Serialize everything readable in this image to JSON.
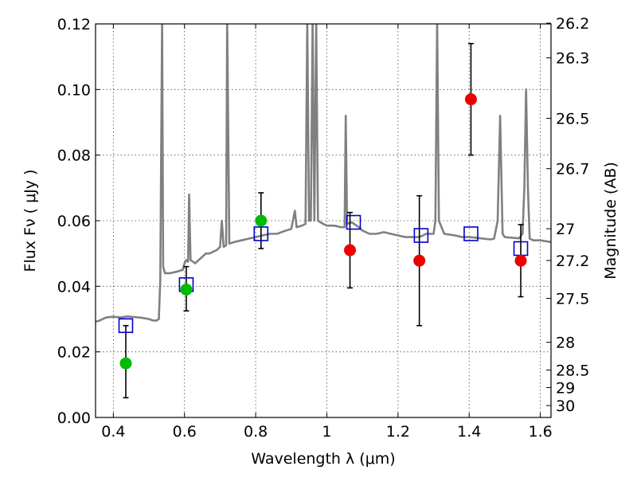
{
  "chart_data": {
    "type": "scatter",
    "xlabel": "Wavelength  λ (μm)",
    "ylabel": "Flux  Fν  ( μJy )",
    "y2label": "Magnitude (AB)",
    "xlim": [
      0.35,
      1.63
    ],
    "ylim": [
      0.0,
      0.12
    ],
    "grid": true,
    "x_ticks": [
      0.4,
      0.6,
      0.8,
      1.0,
      1.2,
      1.4,
      1.6
    ],
    "x_tick_labels": [
      "0.4",
      "0.6",
      "0.8",
      "1",
      "1.2",
      "1.4",
      "1.6"
    ],
    "y_ticks": [
      0.0,
      0.02,
      0.04,
      0.06,
      0.08,
      0.1,
      0.12
    ],
    "y_tick_labels": [
      "0.00",
      "0.02",
      "0.04",
      "0.06",
      "0.08",
      "0.10",
      "0.12"
    ],
    "mag_ticks": [
      26.2,
      26.3,
      26.5,
      26.7,
      27,
      27.2,
      27.5,
      28,
      28.5,
      29,
      30
    ],
    "mag_tick_labels": [
      "26.2",
      "26.3",
      "26.5",
      "26.7",
      "27",
      "27.2",
      "27.5",
      "28",
      "28.5",
      "29",
      "30"
    ],
    "colors": {
      "spectrum": "#808080",
      "green_points": "#00bb00",
      "red_points": "#ee0000",
      "model_squares": "#0000cc",
      "errorbar": "#000000"
    },
    "series": [
      {
        "kind": "spectrum",
        "points": [
          [
            0.35,
            0.0292
          ],
          [
            0.36,
            0.0295
          ],
          [
            0.37,
            0.03
          ],
          [
            0.38,
            0.0305
          ],
          [
            0.4,
            0.0307
          ],
          [
            0.42,
            0.0305
          ],
          [
            0.44,
            0.0308
          ],
          [
            0.46,
            0.0306
          ],
          [
            0.48,
            0.0304
          ],
          [
            0.5,
            0.03
          ],
          [
            0.51,
            0.0296
          ],
          [
            0.52,
            0.0295
          ],
          [
            0.528,
            0.03
          ],
          [
            0.532,
            0.042
          ],
          [
            0.537,
            0.121
          ],
          [
            0.54,
            0.046
          ],
          [
            0.545,
            0.044
          ],
          [
            0.56,
            0.044
          ],
          [
            0.58,
            0.0445
          ],
          [
            0.595,
            0.045
          ],
          [
            0.6,
            0.047
          ],
          [
            0.605,
            0.048
          ],
          [
            0.61,
            0.0475
          ],
          [
            0.613,
            0.068
          ],
          [
            0.617,
            0.048
          ],
          [
            0.63,
            0.047
          ],
          [
            0.65,
            0.049
          ],
          [
            0.66,
            0.05
          ],
          [
            0.67,
            0.05
          ],
          [
            0.68,
            0.0505
          ],
          [
            0.69,
            0.051
          ],
          [
            0.7,
            0.052
          ],
          [
            0.705,
            0.06
          ],
          [
            0.71,
            0.052
          ],
          [
            0.717,
            0.0525
          ],
          [
            0.72,
            0.121
          ],
          [
            0.726,
            0.053
          ],
          [
            0.74,
            0.0535
          ],
          [
            0.76,
            0.054
          ],
          [
            0.78,
            0.0545
          ],
          [
            0.8,
            0.055
          ],
          [
            0.82,
            0.0555
          ],
          [
            0.84,
            0.056
          ],
          [
            0.86,
            0.056
          ],
          [
            0.88,
            0.0568
          ],
          [
            0.9,
            0.0575
          ],
          [
            0.91,
            0.063
          ],
          [
            0.915,
            0.058
          ],
          [
            0.93,
            0.0585
          ],
          [
            0.94,
            0.059
          ],
          [
            0.945,
            0.121
          ],
          [
            0.95,
            0.06
          ],
          [
            0.955,
            0.06
          ],
          [
            0.96,
            0.121
          ],
          [
            0.965,
            0.06
          ],
          [
            0.97,
            0.121
          ],
          [
            0.975,
            0.06
          ],
          [
            0.99,
            0.059
          ],
          [
            1.0,
            0.0585
          ],
          [
            1.02,
            0.0585
          ],
          [
            1.04,
            0.058
          ],
          [
            1.05,
            0.058
          ],
          [
            1.053,
            0.092
          ],
          [
            1.057,
            0.059
          ],
          [
            1.07,
            0.0595
          ],
          [
            1.09,
            0.058
          ],
          [
            1.1,
            0.057
          ],
          [
            1.12,
            0.056
          ],
          [
            1.14,
            0.056
          ],
          [
            1.16,
            0.0565
          ],
          [
            1.18,
            0.056
          ],
          [
            1.2,
            0.0555
          ],
          [
            1.22,
            0.055
          ],
          [
            1.24,
            0.055
          ],
          [
            1.26,
            0.055
          ],
          [
            1.28,
            0.056
          ],
          [
            1.3,
            0.056
          ],
          [
            1.305,
            0.06
          ],
          [
            1.31,
            0.121
          ],
          [
            1.315,
            0.06
          ],
          [
            1.33,
            0.056
          ],
          [
            1.36,
            0.0555
          ],
          [
            1.38,
            0.055
          ],
          [
            1.4,
            0.055
          ],
          [
            1.42,
            0.0548
          ],
          [
            1.44,
            0.0545
          ],
          [
            1.46,
            0.0543
          ],
          [
            1.47,
            0.0545
          ],
          [
            1.48,
            0.06
          ],
          [
            1.487,
            0.092
          ],
          [
            1.494,
            0.056
          ],
          [
            1.5,
            0.055
          ],
          [
            1.52,
            0.0548
          ],
          [
            1.54,
            0.0546
          ],
          [
            1.55,
            0.056
          ],
          [
            1.555,
            0.07
          ],
          [
            1.56,
            0.1
          ],
          [
            1.565,
            0.07
          ],
          [
            1.57,
            0.0545
          ],
          [
            1.58,
            0.054
          ],
          [
            1.6,
            0.054
          ],
          [
            1.63,
            0.0535
          ]
        ]
      },
      {
        "kind": "green_points",
        "points": [
          {
            "x": 0.435,
            "y": 0.0165,
            "err_low": 0.0105,
            "err_high": 0.0115
          },
          {
            "x": 0.605,
            "y": 0.039,
            "err_low": 0.0065,
            "err_high": 0.007
          },
          {
            "x": 0.815,
            "y": 0.06,
            "err_low": 0.0085,
            "err_high": 0.0085
          }
        ]
      },
      {
        "kind": "red_points",
        "points": [
          {
            "x": 1.065,
            "y": 0.051,
            "err_low": 0.0115,
            "err_high": 0.0115
          },
          {
            "x": 1.26,
            "y": 0.0478,
            "err_low": 0.0198,
            "err_high": 0.0198
          },
          {
            "x": 1.405,
            "y": 0.097,
            "err_low": 0.017,
            "err_high": 0.017
          },
          {
            "x": 1.545,
            "y": 0.0478,
            "err_low": 0.011,
            "err_high": 0.011
          }
        ]
      },
      {
        "kind": "model_squares",
        "points": [
          {
            "x": 0.435,
            "y": 0.028
          },
          {
            "x": 0.605,
            "y": 0.0405
          },
          {
            "x": 0.815,
            "y": 0.056
          },
          {
            "x": 1.075,
            "y": 0.0595
          },
          {
            "x": 1.265,
            "y": 0.0555
          },
          {
            "x": 1.405,
            "y": 0.056
          },
          {
            "x": 1.545,
            "y": 0.0515
          }
        ]
      }
    ]
  }
}
